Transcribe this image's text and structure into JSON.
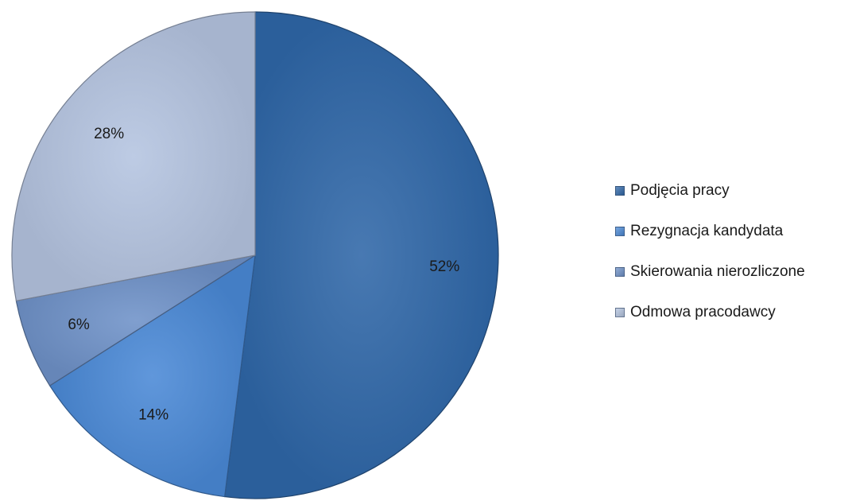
{
  "chart_data": {
    "type": "pie",
    "title": "",
    "start_angle_deg": 0,
    "direction": "clockwise",
    "legend_position": "right",
    "slices": [
      {
        "name": "Podjęcia pracy",
        "value": 52,
        "label": "52%",
        "color": "#2f67a8"
      },
      {
        "name": "Rezygnacja kandydata",
        "value": 14,
        "label": "14%",
        "color": "#4a89d6"
      },
      {
        "name": "Skierowania nierozliczone",
        "value": 6,
        "label": "6%",
        "color": "#6f92c8"
      },
      {
        "name": "Odmowa pracodawcy",
        "value": 28,
        "label": "28%",
        "color": "#b4c4e0"
      }
    ]
  }
}
